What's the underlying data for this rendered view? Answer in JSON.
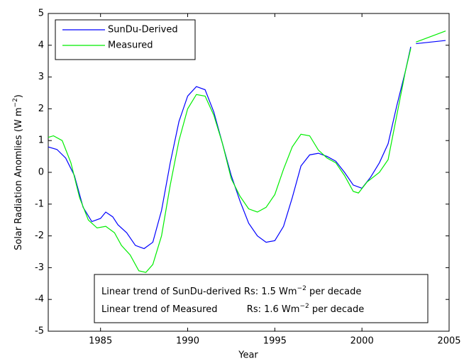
{
  "chart_data": {
    "type": "line",
    "xlabel": "Year",
    "ylabel": {
      "text": "Solar Radiation Anomlies (W m",
      "sup": "−2",
      "tail": ")"
    },
    "xlim": [
      1982,
      2005
    ],
    "xticks": [
      1985,
      1990,
      1995,
      2000,
      2005
    ],
    "ylim": [
      -5,
      5
    ],
    "yticks": [
      -5,
      -4,
      -3,
      -2,
      -1,
      0,
      1,
      2,
      3,
      4,
      5
    ],
    "legend": "top-left",
    "series": [
      {
        "name": "SunDu-Derived",
        "color": "#0000ff",
        "x": [
          1982,
          1982.5,
          1983,
          1983.5,
          1984,
          1984.5,
          1985,
          1985.3,
          1985.7,
          1986,
          1986.5,
          1987,
          1987.5,
          1988,
          1988.5,
          1989,
          1989.5,
          1990,
          1990.5,
          1991,
          1991.5,
          1992,
          1992.5,
          1993,
          1993.5,
          1994,
          1994.5,
          1995,
          1995.5,
          1996,
          1996.5,
          1997,
          1997.5,
          1998,
          1998.5,
          1999,
          1999.5,
          2000,
          2000.5,
          2001,
          2001.5,
          2002,
          2002.5,
          2002.8,
          2002.9,
          2003.1,
          2004.8
        ],
        "values": [
          0.8,
          0.72,
          0.45,
          -0.1,
          -1.1,
          -1.55,
          -1.45,
          -1.25,
          -1.4,
          -1.65,
          -1.9,
          -2.3,
          -2.4,
          -2.2,
          -1.2,
          0.3,
          1.6,
          2.4,
          2.7,
          2.6,
          1.9,
          0.9,
          -0.1,
          -0.9,
          -1.6,
          -2.0,
          -2.2,
          -2.15,
          -1.7,
          -0.8,
          0.2,
          0.55,
          0.6,
          0.5,
          0.35,
          0.0,
          -0.4,
          -0.5,
          -0.15,
          0.3,
          0.9,
          2.1,
          3.2,
          3.95,
          null,
          4.05,
          4.15
        ]
      },
      {
        "name": "Measured",
        "color": "#00ee00",
        "x": [
          1982,
          1982.3,
          1982.8,
          1983.3,
          1983.8,
          1984.3,
          1984.8,
          1985.3,
          1985.8,
          1986.2,
          1986.7,
          1987.2,
          1987.6,
          1988,
          1988.5,
          1989,
          1989.5,
          1990,
          1990.5,
          1991,
          1991.5,
          1992,
          1992.5,
          1993,
          1993.5,
          1994,
          1994.5,
          1995,
          1995.5,
          1996,
          1996.5,
          1997,
          1997.5,
          1998,
          1998.5,
          1999,
          1999.5,
          1999.8,
          2000.3,
          2001,
          2001.5,
          2002,
          2002.5,
          2002.8,
          2002.9,
          2003.1,
          2004.8
        ],
        "values": [
          1.1,
          1.15,
          1.0,
          0.3,
          -0.8,
          -1.5,
          -1.75,
          -1.7,
          -1.9,
          -2.3,
          -2.6,
          -3.1,
          -3.15,
          -2.9,
          -2.0,
          -0.4,
          1.0,
          2.0,
          2.45,
          2.4,
          1.8,
          0.9,
          -0.2,
          -0.75,
          -1.15,
          -1.25,
          -1.1,
          -0.7,
          0.1,
          0.8,
          1.2,
          1.15,
          0.7,
          0.45,
          0.3,
          -0.1,
          -0.6,
          -0.65,
          -0.3,
          0.0,
          0.4,
          1.8,
          3.2,
          3.9,
          null,
          4.1,
          4.45
        ]
      }
    ],
    "annotations": [
      {
        "text": "Linear trend of SunDu-derived Rs: 1.5 Wm",
        "sup": "−2",
        "tail": " per decade"
      },
      {
        "text": "Linear trend of Measured          Rs: 1.6 Wm",
        "sup": "−2",
        "tail": " per decade"
      }
    ]
  }
}
